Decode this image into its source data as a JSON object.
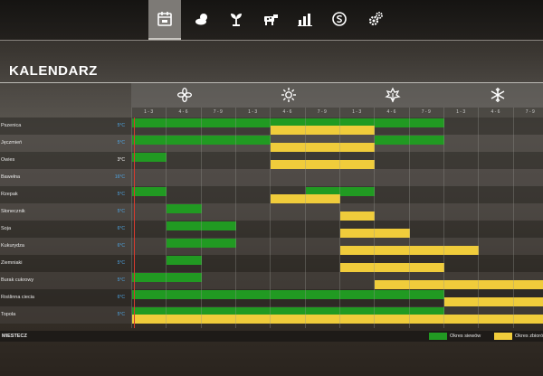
{
  "tabs": [
    {
      "name": "tab-calendar",
      "icon": "calendar-icon",
      "active": true
    },
    {
      "name": "tab-weather",
      "icon": "weather-icon",
      "active": false
    },
    {
      "name": "tab-crops",
      "icon": "plant-icon",
      "active": false
    },
    {
      "name": "tab-animals",
      "icon": "cow-icon",
      "active": false
    },
    {
      "name": "tab-statistics",
      "icon": "chart-icon",
      "active": false
    },
    {
      "name": "tab-economy",
      "icon": "money-icon",
      "active": false
    },
    {
      "name": "tab-settings",
      "icon": "gears-icon",
      "active": false
    }
  ],
  "page": {
    "title": "KALENDARZ"
  },
  "seasons": [
    {
      "icon": "spring-flower-icon"
    },
    {
      "icon": "summer-sun-icon"
    },
    {
      "icon": "autumn-leaf-icon"
    },
    {
      "icon": "winter-snowflake-icon"
    }
  ],
  "periods": [
    "1 - 3",
    "4 - 6",
    "7 - 9",
    "1 - 3",
    "4 - 6",
    "7 - 9",
    "1 - 3",
    "4 - 6",
    "7 - 9",
    "1 - 3",
    "4 - 6",
    "7 - 9"
  ],
  "crops": [
    {
      "name": "Pszenica",
      "temp": "5°C",
      "temp_color": "blue"
    },
    {
      "name": "Jęczmień",
      "temp": "5°C",
      "temp_color": "blue"
    },
    {
      "name": "Owies",
      "temp": "3°C",
      "temp_color": "white"
    },
    {
      "name": "Bawełna",
      "temp": "16°C",
      "temp_color": "blue"
    },
    {
      "name": "Rzepak",
      "temp": "5°C",
      "temp_color": "blue"
    },
    {
      "name": "Słonecznik",
      "temp": "5°C",
      "temp_color": "blue"
    },
    {
      "name": "Soja",
      "temp": "6°C",
      "temp_color": "blue"
    },
    {
      "name": "Kukurydza",
      "temp": "6°C",
      "temp_color": "blue"
    },
    {
      "name": "Ziemniaki",
      "temp": "5°C",
      "temp_color": "blue"
    },
    {
      "name": "Burak cukrowy",
      "temp": "5°C",
      "temp_color": "blue"
    },
    {
      "name": "Roślinna ciecia",
      "temp": "6°C",
      "temp_color": "blue"
    },
    {
      "name": "Topola",
      "temp": "5°C",
      "temp_color": "blue"
    }
  ],
  "schedule": [
    {
      "sowing": [
        [
          0,
          9
        ]
      ],
      "harvest": [
        [
          4,
          7
        ]
      ]
    },
    {
      "sowing": [
        [
          0,
          4
        ],
        [
          7,
          9
        ]
      ],
      "harvest": [
        [
          4,
          7
        ]
      ]
    },
    {
      "sowing": [
        [
          0,
          1
        ]
      ],
      "harvest": [
        [
          4,
          7
        ]
      ]
    },
    {
      "sowing": [],
      "harvest": []
    },
    {
      "sowing": [
        [
          0,
          1
        ],
        [
          5,
          7
        ]
      ],
      "harvest": [
        [
          4,
          6
        ]
      ]
    },
    {
      "sowing": [
        [
          1,
          2
        ]
      ],
      "harvest": [
        [
          6,
          7
        ]
      ]
    },
    {
      "sowing": [
        [
          1,
          3
        ]
      ],
      "harvest": [
        [
          6,
          8
        ]
      ]
    },
    {
      "sowing": [
        [
          1,
          3
        ]
      ],
      "harvest": [
        [
          6,
          10
        ]
      ]
    },
    {
      "sowing": [
        [
          1,
          2
        ]
      ],
      "harvest": [
        [
          6,
          9
        ]
      ]
    },
    {
      "sowing": [
        [
          0,
          2
        ]
      ],
      "harvest": [
        [
          7,
          12
        ]
      ]
    },
    {
      "sowing": [
        [
          0,
          9
        ]
      ],
      "harvest": [
        [
          9,
          12
        ]
      ]
    },
    {
      "sowing": [
        [
          0,
          9
        ]
      ],
      "harvest": [
        [
          0,
          12
        ]
      ]
    }
  ],
  "bottom": {
    "label": "MIESTECZ"
  },
  "legend": [
    {
      "label": "Okres siewów",
      "color": "#219a22"
    },
    {
      "label": "Okres zbiorów",
      "color": "#f0cc3b"
    }
  ]
}
